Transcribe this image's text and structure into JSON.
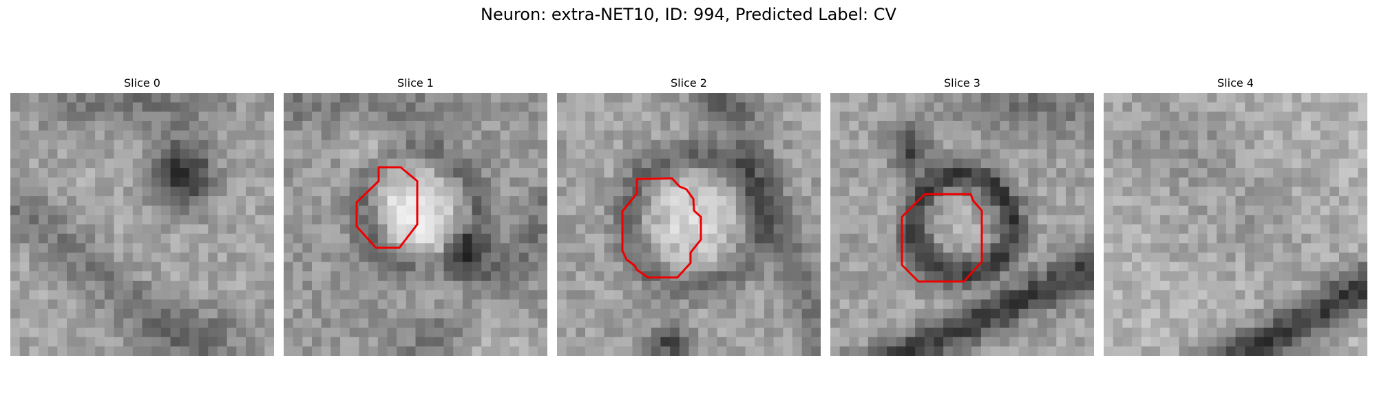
{
  "figure": {
    "title": "Neuron: extra-NET10, ID: 994, Predicted Label: CV"
  },
  "panels": [
    {
      "title": "Slice 0"
    },
    {
      "title": "Slice 1"
    },
    {
      "title": "Slice 2"
    },
    {
      "title": "Slice 3"
    },
    {
      "title": "Slice 4"
    }
  ],
  "colors": {
    "contour": "#ee0000",
    "background": "#ffffff"
  }
}
